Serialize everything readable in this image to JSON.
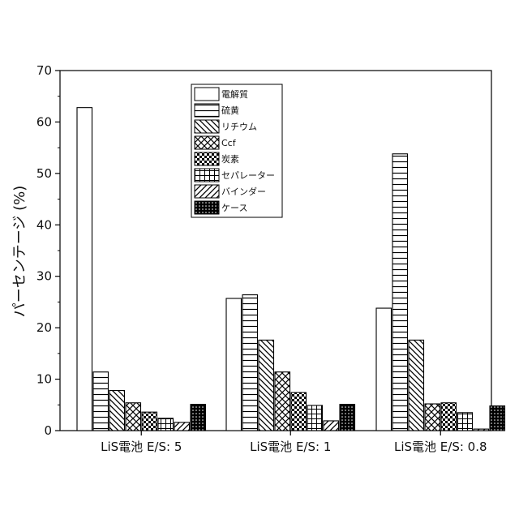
{
  "chart_data": {
    "type": "bar",
    "ylabel": "パーセンテージ (%)",
    "xlabel": "",
    "ylim": [
      0,
      70
    ],
    "yticks": [
      0,
      10,
      20,
      30,
      40,
      50,
      60,
      70
    ],
    "grid": false,
    "legend_position": "top-center",
    "categories": [
      "LiS電池 E/S: 5",
      "LiS電池 E/S: 1",
      "LiS電池 E/S: 0.8"
    ],
    "series": [
      {
        "name": "電解質",
        "pattern": "none",
        "values": [
          62.8,
          25.7,
          23.8
        ]
      },
      {
        "name": "硫黄",
        "pattern": "horizontal",
        "values": [
          11.4,
          26.4,
          53.8
        ]
      },
      {
        "name": "リチウム",
        "pattern": "diagonal-down",
        "values": [
          7.8,
          17.6,
          17.6
        ]
      },
      {
        "name": "Ccf",
        "pattern": "crosshatch",
        "values": [
          5.4,
          11.4,
          5.2
        ]
      },
      {
        "name": "炭素",
        "pattern": "checker",
        "values": [
          3.6,
          7.4,
          5.4
        ]
      },
      {
        "name": "セパレーター",
        "pattern": "grid",
        "values": [
          2.4,
          4.9,
          3.5
        ]
      },
      {
        "name": "バインダー",
        "pattern": "diagonal-up",
        "values": [
          1.6,
          1.9,
          0.3
        ]
      },
      {
        "name": "ケース",
        "pattern": "dense-dots",
        "values": [
          5.1,
          5.1,
          4.8
        ]
      }
    ]
  }
}
